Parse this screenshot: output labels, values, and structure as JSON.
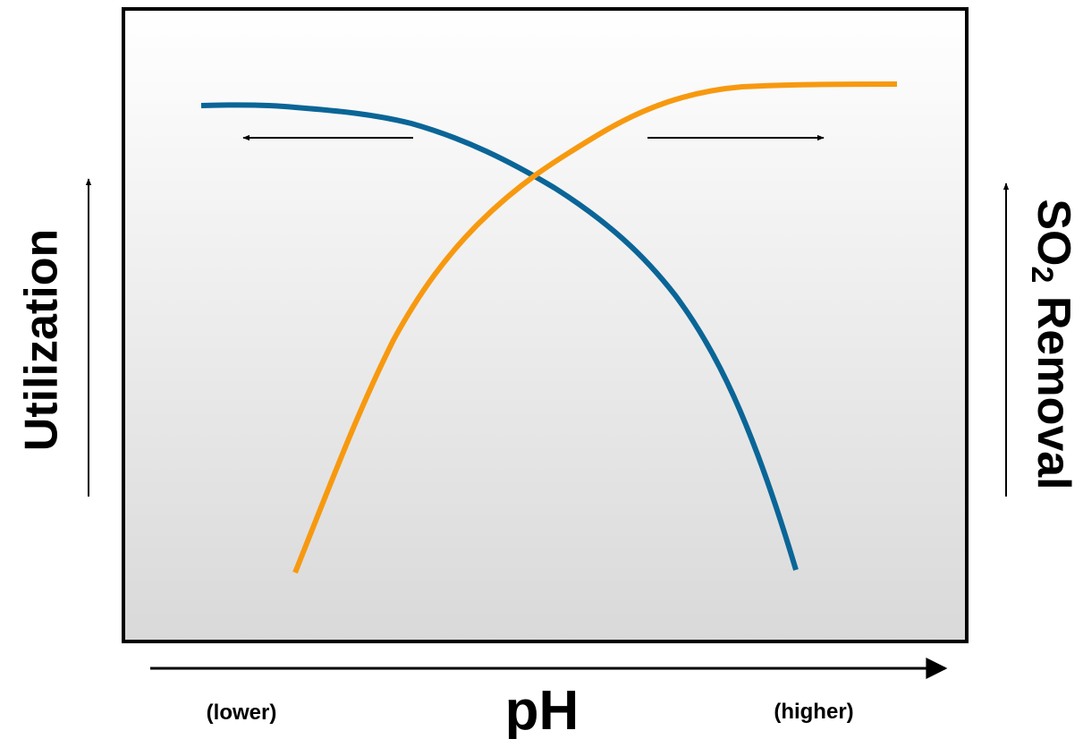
{
  "axis_labels": {
    "left": "Utilization",
    "right": {
      "main": "SO",
      "subscript": "2",
      "rest": " Removal"
    },
    "bottom": "pH",
    "bottom_low": "(lower)",
    "bottom_high": "(higher)"
  }
}
